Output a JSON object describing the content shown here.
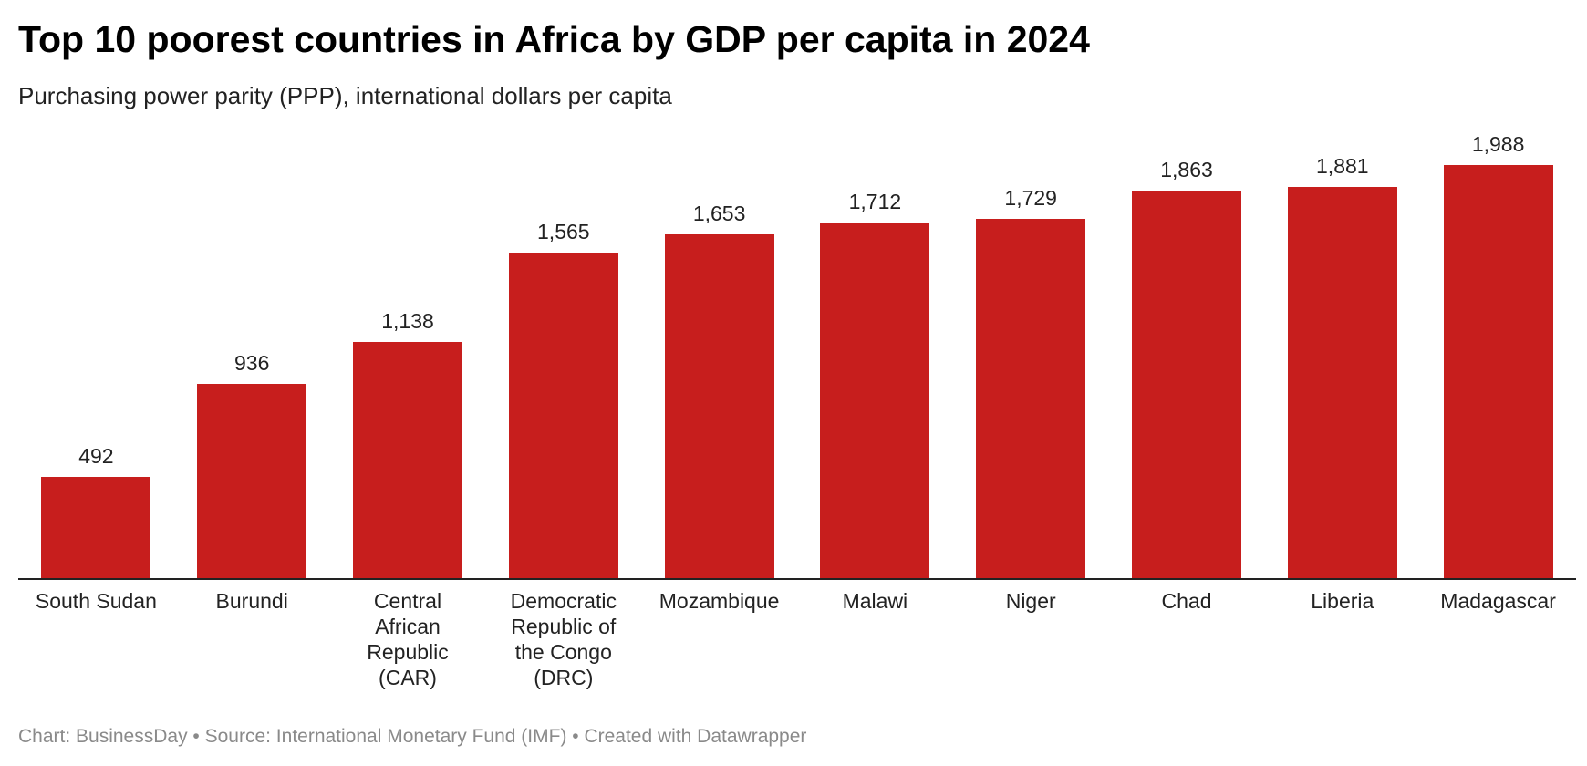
{
  "chart_data": {
    "type": "bar",
    "title": "Top 10 poorest countries in Africa by GDP per capita in 2024",
    "subtitle": "Purchasing power parity (PPP), international dollars per capita",
    "footer": "Chart: BusinessDay • Source: International Monetary Fund (IMF) • Created with Datawrapper",
    "categories": [
      "South Sudan",
      "Burundi",
      "Central African Republic (CAR)",
      "Democratic Republic of the Congo (DRC)",
      "Mozambique",
      "Malawi",
      "Niger",
      "Chad",
      "Liberia",
      "Madagascar"
    ],
    "values": [
      492,
      936,
      1138,
      1565,
      1653,
      1712,
      1729,
      1863,
      1881,
      1988
    ],
    "value_labels": [
      "492",
      "936",
      "1,138",
      "1,565",
      "1,653",
      "1,712",
      "1,729",
      "1,863",
      "1,881",
      "1,988"
    ],
    "color": "#c71e1d",
    "ylim": [
      0,
      2000
    ],
    "grid": false
  }
}
